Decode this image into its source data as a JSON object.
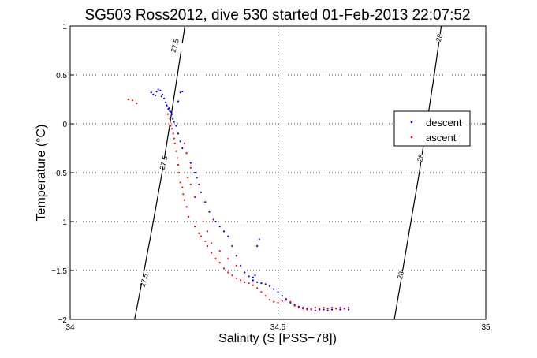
{
  "chart_data": {
    "type": "scatter",
    "title": "SG503 Ross2012, dive 530 started 01-Feb-2013 22:07:52",
    "xlabel": "Salinity (S [PSS−78])",
    "ylabel": "Temperature (°C)",
    "xlim": [
      34,
      35
    ],
    "ylim": [
      -2,
      1
    ],
    "x_ticks": [
      {
        "value": 34,
        "label": "34"
      },
      {
        "value": 34.5,
        "label": "34.5"
      },
      {
        "value": 35,
        "label": "35"
      }
    ],
    "y_ticks": [
      {
        "value": -2,
        "label": "−2"
      },
      {
        "value": -1.5,
        "label": "−1.5"
      },
      {
        "value": -1,
        "label": "−1"
      },
      {
        "value": -0.5,
        "label": "−0.5"
      },
      {
        "value": 0,
        "label": "0"
      },
      {
        "value": 0.5,
        "label": "0.5"
      },
      {
        "value": 1,
        "label": "1"
      }
    ],
    "grid": true,
    "legend_position": "right",
    "isopycnals": [
      {
        "label": "27.5",
        "color": "#000000",
        "points": [
          [
            34.155,
            -2.0
          ],
          [
            34.178,
            -1.5
          ],
          [
            34.2,
            -1.0
          ],
          [
            34.221,
            -0.5
          ],
          [
            34.24,
            0.0
          ],
          [
            34.258,
            0.5
          ],
          [
            34.276,
            1.0
          ]
        ],
        "label_positions": [
          [
            34.252,
            0.8
          ],
          [
            34.225,
            -0.4
          ],
          [
            34.178,
            -1.6
          ]
        ]
      },
      {
        "label": "28",
        "color": "#000000",
        "points": [
          [
            34.78,
            -2.0
          ],
          [
            34.8,
            -1.5
          ],
          [
            34.82,
            -1.0
          ],
          [
            34.84,
            -0.5
          ],
          [
            34.858,
            0.0
          ],
          [
            34.876,
            0.5
          ],
          [
            34.893,
            1.0
          ]
        ],
        "label_positions": [
          [
            34.888,
            0.88
          ],
          [
            34.843,
            -0.35
          ],
          [
            34.795,
            -1.55
          ]
        ]
      }
    ],
    "series": [
      {
        "name": "descent",
        "color": "#0000ff",
        "points": [
          [
            34.195,
            0.32
          ],
          [
            34.2,
            0.3
          ],
          [
            34.205,
            0.29
          ],
          [
            34.208,
            0.33
          ],
          [
            34.212,
            0.35
          ],
          [
            34.217,
            0.34
          ],
          [
            34.222,
            0.3
          ],
          [
            34.226,
            0.26
          ],
          [
            34.23,
            0.22
          ],
          [
            34.233,
            0.18
          ],
          [
            34.236,
            0.15
          ],
          [
            34.24,
            0.13
          ],
          [
            34.243,
            0.12
          ],
          [
            34.245,
            0.1
          ],
          [
            34.247,
            0.05
          ],
          [
            34.25,
            0.02
          ],
          [
            34.255,
            -0.02
          ],
          [
            34.26,
            -0.1
          ],
          [
            34.265,
            -0.18
          ],
          [
            34.27,
            -0.25
          ],
          [
            34.28,
            -0.3
          ],
          [
            34.29,
            -0.4
          ],
          [
            34.3,
            -0.5
          ],
          [
            34.305,
            -0.55
          ],
          [
            34.31,
            -0.62
          ],
          [
            34.315,
            -0.7
          ],
          [
            34.325,
            -0.8
          ],
          [
            34.335,
            -0.9
          ],
          [
            34.345,
            -0.98
          ],
          [
            34.35,
            -1.0
          ],
          [
            34.36,
            -1.05
          ],
          [
            34.37,
            -1.1
          ],
          [
            34.38,
            -1.15
          ],
          [
            34.39,
            -1.25
          ],
          [
            34.4,
            -1.35
          ],
          [
            34.41,
            -1.45
          ],
          [
            34.42,
            -1.52
          ],
          [
            34.43,
            -1.56
          ],
          [
            34.44,
            -1.6
          ],
          [
            34.45,
            -1.62
          ],
          [
            34.46,
            -1.63
          ],
          [
            34.47,
            -1.64
          ],
          [
            34.48,
            -1.66
          ],
          [
            34.49,
            -1.69
          ],
          [
            34.5,
            -1.72
          ],
          [
            34.51,
            -1.76
          ],
          [
            34.52,
            -1.8
          ],
          [
            34.53,
            -1.83
          ],
          [
            34.54,
            -1.85
          ],
          [
            34.55,
            -1.87
          ],
          [
            34.56,
            -1.88
          ],
          [
            34.57,
            -1.89
          ],
          [
            34.58,
            -1.9
          ],
          [
            34.59,
            -1.91
          ],
          [
            34.6,
            -1.9
          ],
          [
            34.61,
            -1.9
          ],
          [
            34.62,
            -1.91
          ],
          [
            34.63,
            -1.9
          ],
          [
            34.64,
            -1.89
          ],
          [
            34.65,
            -1.9
          ],
          [
            34.66,
            -1.89
          ],
          [
            34.67,
            -1.9
          ],
          [
            34.44,
            -1.57
          ],
          [
            34.445,
            -1.55
          ],
          [
            34.45,
            -1.25
          ],
          [
            34.455,
            -1.18
          ],
          [
            34.22,
            0.28
          ],
          [
            34.26,
            0.23
          ],
          [
            34.265,
            0.32
          ],
          [
            34.27,
            0.33
          ],
          [
            34.232,
            0.19
          ],
          [
            34.238,
            0.16
          ]
        ]
      },
      {
        "name": "ascent",
        "color": "#ff0000",
        "points": [
          [
            34.14,
            0.25
          ],
          [
            34.15,
            0.24
          ],
          [
            34.16,
            0.21
          ],
          [
            34.235,
            0.1
          ],
          [
            34.24,
            0.05
          ],
          [
            34.242,
            -0.02
          ],
          [
            34.245,
            -0.05
          ],
          [
            34.248,
            -0.1
          ],
          [
            34.25,
            -0.15
          ],
          [
            34.252,
            -0.2
          ],
          [
            34.255,
            -0.28
          ],
          [
            34.258,
            -0.35
          ],
          [
            34.26,
            -0.42
          ],
          [
            34.262,
            -0.5
          ],
          [
            34.265,
            -0.6
          ],
          [
            34.27,
            -0.65
          ],
          [
            34.272,
            -0.72
          ],
          [
            34.275,
            -0.78
          ],
          [
            34.28,
            -0.85
          ],
          [
            34.285,
            -0.95
          ],
          [
            34.3,
            -1.05
          ],
          [
            34.31,
            -1.12
          ],
          [
            34.315,
            -1.15
          ],
          [
            34.325,
            -1.2
          ],
          [
            34.33,
            -1.25
          ],
          [
            34.34,
            -1.32
          ],
          [
            34.35,
            -1.38
          ],
          [
            34.36,
            -1.42
          ],
          [
            34.37,
            -1.48
          ],
          [
            34.38,
            -1.52
          ],
          [
            34.39,
            -1.55
          ],
          [
            34.4,
            -1.58
          ],
          [
            34.41,
            -1.6
          ],
          [
            34.42,
            -1.62
          ],
          [
            34.43,
            -1.63
          ],
          [
            34.44,
            -1.65
          ],
          [
            34.45,
            -1.68
          ],
          [
            34.46,
            -1.72
          ],
          [
            34.47,
            -1.76
          ],
          [
            34.48,
            -1.8
          ],
          [
            34.49,
            -1.82
          ],
          [
            34.5,
            -1.83
          ],
          [
            34.51,
            -1.81
          ],
          [
            34.52,
            -1.79
          ],
          [
            34.53,
            -1.82
          ],
          [
            34.54,
            -1.86
          ],
          [
            34.55,
            -1.88
          ],
          [
            34.56,
            -1.89
          ],
          [
            34.57,
            -1.9
          ],
          [
            34.58,
            -1.89
          ],
          [
            34.59,
            -1.88
          ],
          [
            34.6,
            -1.89
          ],
          [
            34.61,
            -1.88
          ],
          [
            34.62,
            -1.89
          ],
          [
            34.63,
            -1.88
          ],
          [
            34.64,
            -1.89
          ],
          [
            34.65,
            -1.88
          ],
          [
            34.66,
            -1.89
          ],
          [
            34.67,
            -1.88
          ],
          [
            34.275,
            -0.2
          ],
          [
            34.28,
            -0.3
          ],
          [
            34.29,
            -0.45
          ],
          [
            34.283,
            -0.55
          ],
          [
            34.29,
            -0.62
          ],
          [
            34.3,
            -0.75
          ],
          [
            34.32,
            -1.0
          ],
          [
            34.33,
            -1.1
          ],
          [
            34.34,
            -1.22
          ],
          [
            34.36,
            -1.3
          ],
          [
            34.38,
            -1.38
          ],
          [
            34.4,
            -1.45
          ]
        ]
      }
    ]
  }
}
